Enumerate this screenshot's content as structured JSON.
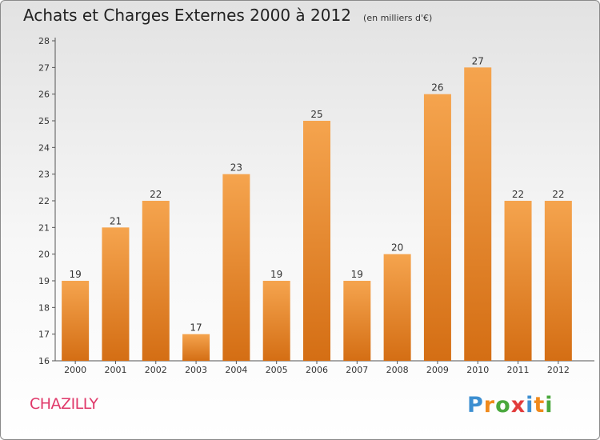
{
  "header": {
    "title": "Achats et Charges Externes 2000 à 2012",
    "unit": "(en milliers d'€)"
  },
  "footer": {
    "commune": "CHAZILLY",
    "logo_letters": [
      "P",
      "r",
      "o",
      "x",
      "i",
      "t",
      "i"
    ],
    "logo_colors": [
      "#3d8fd1",
      "#f08a1c",
      "#4aa83d",
      "#e23b3b",
      "#3d8fd1",
      "#f08a1c",
      "#4aa83d"
    ]
  },
  "chart_data": {
    "type": "bar",
    "categories": [
      "2000",
      "2001",
      "2002",
      "2003",
      "2004",
      "2005",
      "2006",
      "2007",
      "2008",
      "2009",
      "2010",
      "2011",
      "2012"
    ],
    "values": [
      19,
      21,
      22,
      17,
      23,
      19,
      25,
      19,
      20,
      26,
      27,
      22,
      22
    ],
    "ylim": [
      16,
      28
    ],
    "yticks": [
      16,
      17,
      18,
      19,
      20,
      21,
      22,
      23,
      24,
      25,
      26,
      27,
      28
    ],
    "grid": false,
    "bar_color_top": "#f5a44e",
    "bar_color_bottom": "#d46e14"
  }
}
